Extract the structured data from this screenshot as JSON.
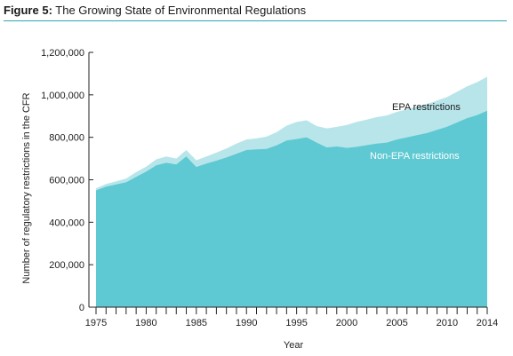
{
  "figure": {
    "prefix": "Figure 5:",
    "title": "The Growing State of Environmental Regulations"
  },
  "colors": {
    "rule": "#2fa6b0",
    "non_epa": "#5ec9d2",
    "epa": "#b8e5ea",
    "epa_label": "#1a1a1a",
    "non_epa_label": "#ffffff"
  },
  "chart_data": {
    "type": "area",
    "stacked": true,
    "xlabel": "Year",
    "ylabel": "Number of regulatory restrictions in the CFR",
    "xlim": [
      1975,
      2014
    ],
    "ylim": [
      0,
      1200000
    ],
    "x_ticks": [
      1975,
      1980,
      1985,
      1990,
      1995,
      2000,
      2005,
      2010,
      2014
    ],
    "y_ticks": [
      0,
      200000,
      400000,
      600000,
      800000,
      1000000,
      1200000
    ],
    "y_tick_labels": [
      "0",
      "200,000",
      "400,000",
      "600,000",
      "800,000",
      "1,000,000",
      "1,200,000"
    ],
    "grid": false,
    "x": [
      1975,
      1976,
      1977,
      1978,
      1979,
      1980,
      1981,
      1982,
      1983,
      1984,
      1985,
      1986,
      1987,
      1988,
      1989,
      1990,
      1991,
      1992,
      1993,
      1994,
      1995,
      1996,
      1997,
      1998,
      1999,
      2000,
      2001,
      2002,
      2003,
      2004,
      2005,
      2006,
      2007,
      2008,
      2009,
      2010,
      2011,
      2012,
      2013,
      2014
    ],
    "series": [
      {
        "name": "Non-EPA restrictions",
        "values": [
          550000,
          568000,
          578000,
          588000,
          614000,
          638000,
          668000,
          680000,
          672000,
          710000,
          660000,
          676000,
          690000,
          705000,
          722000,
          740000,
          743000,
          745000,
          762000,
          785000,
          792000,
          800000,
          775000,
          752000,
          757000,
          750000,
          755000,
          763000,
          770000,
          775000,
          790000,
          800000,
          810000,
          820000,
          835000,
          850000,
          870000,
          890000,
          905000,
          925000
        ]
      },
      {
        "name": "EPA restrictions",
        "values": [
          10000,
          12000,
          15000,
          18000,
          22000,
          24000,
          28000,
          30000,
          28000,
          30000,
          32000,
          34000,
          38000,
          42000,
          48000,
          50000,
          52000,
          58000,
          62000,
          70000,
          80000,
          80000,
          78000,
          90000,
          92000,
          108000,
          118000,
          120000,
          125000,
          128000,
          130000,
          132000,
          135000,
          137000,
          138000,
          140000,
          145000,
          150000,
          155000,
          160000
        ]
      }
    ],
    "labels": {
      "epa": "EPA restrictions",
      "non_epa": "Non-EPA restrictions"
    }
  }
}
